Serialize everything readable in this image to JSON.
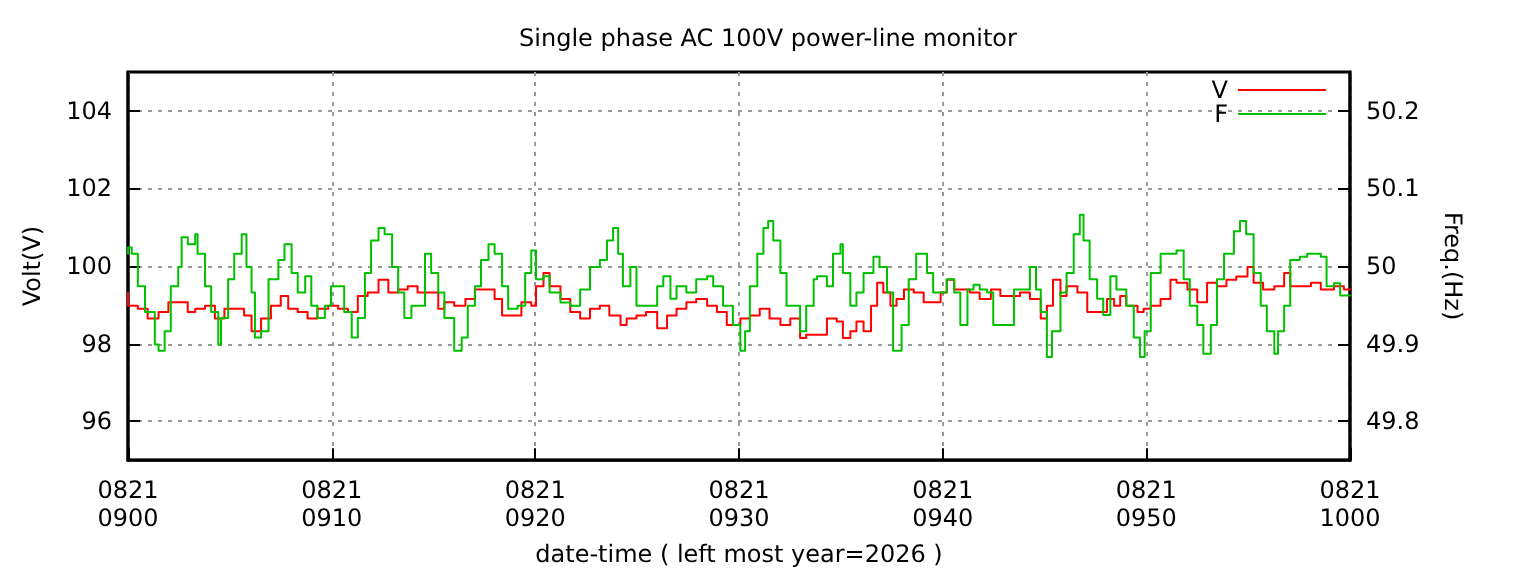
{
  "chart_data": {
    "type": "step",
    "title": "Single phase AC 100V power-line monitor",
    "xlabel": "date-time ( left most year=2026 )",
    "ylabel": "Volt(V)",
    "y2label": "Freq.(Hz)",
    "xlim": [
      "2026-08-21T09:00",
      "2026-08-21T10:00"
    ],
    "xticks": [
      {
        "value": "2026-08-21T09:00",
        "label": "0821\n0900"
      },
      {
        "value": "2026-08-21T09:10",
        "label": "0821\n0910"
      },
      {
        "value": "2026-08-21T09:20",
        "label": "0821\n0920"
      },
      {
        "value": "2026-08-21T09:30",
        "label": "0821\n0930"
      },
      {
        "value": "2026-08-21T09:40",
        "label": "0821\n0940"
      },
      {
        "value": "2026-08-21T09:50",
        "label": "0821\n0950"
      },
      {
        "value": "2026-08-21T10:00",
        "label": "0821\n1000"
      }
    ],
    "ylim": [
      95,
      105
    ],
    "yticks": [
      96,
      98,
      100,
      102,
      104
    ],
    "y2lim": [
      49.75,
      50.25
    ],
    "y2ticks": [
      49.8,
      49.9,
      50,
      50.1,
      50.2
    ],
    "grid": true,
    "legend": "top right",
    "line_style": "solid",
    "marker": "none",
    "series": [
      {
        "name": "V",
        "color": "#ff0000",
        "x": [
          "2026-08-21T09:00:00",
          "2026-08-21T09:00:29",
          "2026-08-21T09:00:58",
          "2026-08-21T09:01:30",
          "2026-08-21T09:01:59",
          "2026-08-21T09:02:28",
          "2026-08-21T09:02:56",
          "2026-08-21T09:03:18",
          "2026-08-21T09:03:47",
          "2026-08-21T09:04:16",
          "2026-08-21T09:04:44",
          "2026-08-21T09:05:13",
          "2026-08-21T09:05:42",
          "2026-08-21T09:06:04",
          "2026-08-21T09:06:32",
          "2026-08-21T09:07:01",
          "2026-08-21T09:07:30",
          "2026-08-21T09:07:52",
          "2026-08-21T09:08:20",
          "2026-08-21T09:08:49",
          "2026-08-21T09:09:18",
          "2026-08-21T09:09:50",
          "2026-08-21T09:10:19",
          "2026-08-21T09:10:48",
          "2026-08-21T09:11:17",
          "2026-08-21T09:11:46",
          "2026-08-21T09:12:18",
          "2026-08-21T09:12:47",
          "2026-08-21T09:13:16",
          "2026-08-21T09:13:44",
          "2026-08-21T09:14:13",
          "2026-08-21T09:14:46",
          "2026-08-21T09:15:14",
          "2026-08-21T09:15:32",
          "2026-08-21T09:16:01",
          "2026-08-21T09:16:34",
          "2026-08-21T09:17:02",
          "2026-08-21T09:17:31",
          "2026-08-21T09:18:00",
          "2026-08-21T09:18:22",
          "2026-08-21T09:18:50",
          "2026-08-21T09:19:19",
          "2026-08-21T09:19:48",
          "2026-08-21T09:20:02",
          "2026-08-21T09:20:24",
          "2026-08-21T09:20:42",
          "2026-08-21T09:21:14",
          "2026-08-21T09:21:43",
          "2026-08-21T09:22:12",
          "2026-08-21T09:22:41",
          "2026-08-21T09:23:10",
          "2026-08-21T09:23:38",
          "2026-08-21T09:24:11",
          "2026-08-21T09:24:29",
          "2026-08-21T09:24:58",
          "2026-08-21T09:25:26",
          "2026-08-21T09:25:59",
          "2026-08-21T09:26:28",
          "2026-08-21T09:26:56",
          "2026-08-21T09:27:25",
          "2026-08-21T09:27:54",
          "2026-08-21T09:28:26",
          "2026-08-21T09:28:55",
          "2026-08-21T09:29:24",
          "2026-08-21T09:29:42",
          "2026-08-21T09:30:04",
          "2026-08-21T09:30:32",
          "2026-08-21T09:31:01",
          "2026-08-21T09:31:30",
          "2026-08-21T09:32:02",
          "2026-08-21T09:32:31",
          "2026-08-21T09:33:00",
          "2026-08-21T09:33:18",
          "2026-08-21T09:33:50",
          "2026-08-21T09:34:19",
          "2026-08-21T09:34:48",
          "2026-08-21T09:35:06",
          "2026-08-21T09:35:28",
          "2026-08-21T09:35:46",
          "2026-08-21T09:36:07",
          "2026-08-21T09:36:29",
          "2026-08-21T09:36:47",
          "2026-08-21T09:37:05",
          "2026-08-21T09:37:26",
          "2026-08-21T09:37:44",
          "2026-08-21T09:38:06",
          "2026-08-21T09:38:35",
          "2026-08-21T09:39:04",
          "2026-08-21T09:39:32",
          "2026-08-21T09:39:54",
          "2026-08-21T09:40:12",
          "2026-08-21T09:40:34",
          "2026-08-21T09:40:52",
          "2026-08-21T09:41:20",
          "2026-08-21T09:41:49",
          "2026-08-21T09:42:22",
          "2026-08-21T09:42:50",
          "2026-08-21T09:43:19",
          "2026-08-21T09:43:48",
          "2026-08-21T09:44:17",
          "2026-08-21T09:44:49",
          "2026-08-21T09:45:07",
          "2026-08-21T09:45:25",
          "2026-08-21T09:45:47",
          "2026-08-21T09:46:05",
          "2026-08-21T09:46:37",
          "2026-08-21T09:47:06",
          "2026-08-21T09:47:35",
          "2026-08-21T09:48:04",
          "2026-08-21T09:48:25",
          "2026-08-21T09:48:43",
          "2026-08-21T09:49:01",
          "2026-08-21T09:49:34",
          "2026-08-21T09:49:52",
          "2026-08-21T09:50:13",
          "2026-08-21T09:50:42",
          "2026-08-21T09:51:11",
          "2026-08-21T09:51:29",
          "2026-08-21T09:52:01",
          "2026-08-21T09:52:30",
          "2026-08-21T09:52:59",
          "2026-08-21T09:53:28",
          "2026-08-21T09:53:56",
          "2026-08-21T09:54:25",
          "2026-08-21T09:54:58",
          "2026-08-21T09:55:16",
          "2026-08-21T09:55:44",
          "2026-08-21T09:56:17",
          "2026-08-21T09:56:46",
          "2026-08-21T09:57:04",
          "2026-08-21T09:57:32",
          "2026-08-21T09:58:05",
          "2026-08-21T09:58:34",
          "2026-08-21T09:59:13",
          "2026-08-21T09:59:42",
          "2026-08-21T10:00:00"
        ],
        "values": [
          99.32,
          98.98,
          98.9,
          98.65,
          98.82,
          99.07,
          99.07,
          98.82,
          98.9,
          98.98,
          98.65,
          98.9,
          98.9,
          98.73,
          98.32,
          98.65,
          98.98,
          99.23,
          98.9,
          98.82,
          98.65,
          98.9,
          98.98,
          98.9,
          98.82,
          99.23,
          99.32,
          99.65,
          99.32,
          99.4,
          99.48,
          99.32,
          99.32,
          98.9,
          99.07,
          98.98,
          99.15,
          99.4,
          99.4,
          99.15,
          98.73,
          98.73,
          99.07,
          98.98,
          99.48,
          99.82,
          99.48,
          99.15,
          98.82,
          98.65,
          98.9,
          98.98,
          98.73,
          98.48,
          98.65,
          98.73,
          98.82,
          98.4,
          98.73,
          98.9,
          99.07,
          99.15,
          98.98,
          98.82,
          98.48,
          98.48,
          98.65,
          98.73,
          98.9,
          98.65,
          98.48,
          98.65,
          98.15,
          98.23,
          98.23,
          98.65,
          98.57,
          98.15,
          98.32,
          98.57,
          98.32,
          98.98,
          99.57,
          99.32,
          98.98,
          99.15,
          99.4,
          99.32,
          99.07,
          99.07,
          99.32,
          99.65,
          99.4,
          99.4,
          99.32,
          99.15,
          99.4,
          99.23,
          99.23,
          99.32,
          99.15,
          98.65,
          98.98,
          99.65,
          99.23,
          99.48,
          99.32,
          98.82,
          98.82,
          99.15,
          98.98,
          99.23,
          98.98,
          98.82,
          98.9,
          98.98,
          99.15,
          99.65,
          99.57,
          99.4,
          99.07,
          99.57,
          99.48,
          99.65,
          99.73,
          99.98,
          99.57,
          99.4,
          99.48,
          99.82,
          99.48,
          99.48,
          99.57,
          99.4,
          99.48,
          99.4
        ]
      },
      {
        "name": "F",
        "color": "#00c000",
        "axis": "y2",
        "x": [
          "2026-08-21T09:00:00",
          "2026-08-21T09:00:11",
          "2026-08-21T09:00:29",
          "2026-08-21T09:00:50",
          "2026-08-21T09:01:19",
          "2026-08-21T09:01:30",
          "2026-08-21T09:01:48",
          "2026-08-21T09:02:06",
          "2026-08-21T09:02:28",
          "2026-08-21T09:02:38",
          "2026-08-21T09:02:56",
          "2026-08-21T09:03:18",
          "2026-08-21T09:03:25",
          "2026-08-21T09:03:47",
          "2026-08-21T09:04:05",
          "2026-08-21T09:04:26",
          "2026-08-21T09:04:34",
          "2026-08-21T09:04:55",
          "2026-08-21T09:05:13",
          "2026-08-21T09:05:35",
          "2026-08-21T09:05:49",
          "2026-08-21T09:06:04",
          "2026-08-21T09:06:14",
          "2026-08-21T09:06:32",
          "2026-08-21T09:06:54",
          "2026-08-21T09:07:23",
          "2026-08-21T09:07:41",
          "2026-08-21T09:08:02",
          "2026-08-21T09:08:20",
          "2026-08-21T09:08:42",
          "2026-08-21T09:09:00",
          "2026-08-21T09:09:18",
          "2026-08-21T09:09:40",
          "2026-08-21T09:09:58",
          "2026-08-21T09:10:19",
          "2026-08-21T09:10:37",
          "2026-08-21T09:10:59",
          "2026-08-21T09:11:17",
          "2026-08-21T09:11:38",
          "2026-08-21T09:11:56",
          "2026-08-21T09:12:18",
          "2026-08-21T09:12:36",
          "2026-08-21T09:12:58",
          "2026-08-21T09:13:16",
          "2026-08-21T09:13:34",
          "2026-08-21T09:13:55",
          "2026-08-21T09:14:13",
          "2026-08-21T09:14:35",
          "2026-08-21T09:14:53",
          "2026-08-21T09:15:14",
          "2026-08-21T09:15:32",
          "2026-08-21T09:16:01",
          "2026-08-21T09:16:23",
          "2026-08-21T09:16:41",
          "2026-08-21T09:17:02",
          "2026-08-21T09:17:20",
          "2026-08-21T09:17:42",
          "2026-08-21T09:18:00",
          "2026-08-21T09:18:22",
          "2026-08-21T09:18:40",
          "2026-08-21T09:19:08",
          "2026-08-21T09:19:30",
          "2026-08-21T09:19:48",
          "2026-08-21T09:20:02",
          "2026-08-21T09:20:24",
          "2026-08-21T09:20:42",
          "2026-08-21T09:21:14",
          "2026-08-21T09:21:43",
          "2026-08-21T09:22:12",
          "2026-08-21T09:22:41",
          "2026-08-21T09:23:10",
          "2026-08-21T09:23:31",
          "2026-08-21T09:23:49",
          "2026-08-21T09:24:04",
          "2026-08-21T09:24:18",
          "2026-08-21T09:24:40",
          "2026-08-21T09:24:58",
          "2026-08-21T09:25:26",
          "2026-08-21T09:25:59",
          "2026-08-21T09:26:17",
          "2026-08-21T09:26:38",
          "2026-08-21T09:26:56",
          "2026-08-21T09:27:25",
          "2026-08-21T09:27:54",
          "2026-08-21T09:28:26",
          "2026-08-21T09:28:44",
          "2026-08-21T09:29:13",
          "2026-08-21T09:29:42",
          "2026-08-21T09:30:04",
          "2026-08-21T09:30:18",
          "2026-08-21T09:30:32",
          "2026-08-21T09:30:54",
          "2026-08-21T09:31:12",
          "2026-08-21T09:31:26",
          "2026-08-21T09:31:41",
          "2026-08-21T09:32:02",
          "2026-08-21T09:32:20",
          "2026-08-21T09:32:42",
          "2026-08-21T09:33:00",
          "2026-08-21T09:33:18",
          "2026-08-21T09:33:40",
          "2026-08-21T09:33:50",
          "2026-08-21T09:34:19",
          "2026-08-21T09:34:37",
          "2026-08-21T09:34:59",
          "2026-08-21T09:35:06",
          "2026-08-21T09:35:28",
          "2026-08-21T09:35:46",
          "2026-08-21T09:36:07",
          "2026-08-21T09:36:36",
          "2026-08-21T09:36:54",
          "2026-08-21T09:37:16",
          "2026-08-21T09:37:34",
          "2026-08-21T09:37:59",
          "2026-08-21T09:38:20",
          "2026-08-21T09:38:42",
          "2026-08-21T09:39:14",
          "2026-08-21T09:39:32",
          "2026-08-21T09:39:54",
          "2026-08-21T09:40:12",
          "2026-08-21T09:40:34",
          "2026-08-21T09:40:52",
          "2026-08-21T09:41:13",
          "2026-08-21T09:41:31",
          "2026-08-21T09:41:49",
          "2026-08-21T09:42:11",
          "2026-08-21T09:42:29",
          "2026-08-21T09:43:01",
          "2026-08-21T09:43:30",
          "2026-08-21T09:43:48",
          "2026-08-21T09:44:17",
          "2026-08-21T09:44:35",
          "2026-08-21T09:44:49",
          "2026-08-21T09:45:07",
          "2026-08-21T09:45:22",
          "2026-08-21T09:45:47",
          "2026-08-21T09:46:05",
          "2026-08-21T09:46:26",
          "2026-08-21T09:46:44",
          "2026-08-21T09:46:55",
          "2026-08-21T09:47:13",
          "2026-08-21T09:47:35",
          "2026-08-21T09:47:53",
          "2026-08-21T09:48:14",
          "2026-08-21T09:48:32",
          "2026-08-21T09:49:01",
          "2026-08-21T09:49:23",
          "2026-08-21T09:49:41",
          "2026-08-21T09:49:55",
          "2026-08-21T09:50:13",
          "2026-08-21T09:50:42",
          "2026-08-21T09:51:00",
          "2026-08-21T09:51:29",
          "2026-08-21T09:51:50",
          "2026-08-21T09:52:08",
          "2026-08-21T09:52:30",
          "2026-08-21T09:52:48",
          "2026-08-21T09:53:10",
          "2026-08-21T09:53:28",
          "2026-08-21T09:53:49",
          "2026-08-21T09:54:18",
          "2026-08-21T09:54:36",
          "2026-08-21T09:54:54",
          "2026-08-21T09:55:16",
          "2026-08-21T09:55:37",
          "2026-08-21T09:55:55",
          "2026-08-21T09:56:17",
          "2026-08-21T09:56:28",
          "2026-08-21T09:56:46",
          "2026-08-21T09:57:04",
          "2026-08-21T09:57:32",
          "2026-08-21T09:57:54",
          "2026-08-21T09:58:34",
          "2026-08-21T09:58:51",
          "2026-08-21T09:59:13",
          "2026-08-21T09:59:31",
          "2026-08-21T10:00:00"
        ],
        "values": [
          50.016,
          50.024,
          50.016,
          49.974,
          49.941,
          49.899,
          49.891,
          49.916,
          49.974,
          49.999,
          50.037,
          50.028,
          50.041,
          50.016,
          49.974,
          49.941,
          49.899,
          49.933,
          49.983,
          50.016,
          50.041,
          49.999,
          49.966,
          49.908,
          49.916,
          49.983,
          50.008,
          50.028,
          49.991,
          49.966,
          49.987,
          49.949,
          49.933,
          49.949,
          49.974,
          49.974,
          49.941,
          49.908,
          49.933,
          49.991,
          50.033,
          50.049,
          50.041,
          49.999,
          49.966,
          49.933,
          49.949,
          49.949,
          50.016,
          49.991,
          49.966,
          49.933,
          49.891,
          49.908,
          49.949,
          49.974,
          50.008,
          50.028,
          50.016,
          49.974,
          49.945,
          49.949,
          49.991,
          50.02,
          49.983,
          49.987,
          49.966,
          49.953,
          49.949,
          49.97,
          49.999,
          50.008,
          50.033,
          50.049,
          50.016,
          49.974,
          49.999,
          49.949,
          49.949,
          49.974,
          49.987,
          49.958,
          49.974,
          49.966,
          49.983,
          49.987,
          49.974,
          49.949,
          49.924,
          49.891,
          49.916,
          49.974,
          50.016,
          50.049,
          50.058,
          50.033,
          49.991,
          49.949,
          49.949,
          49.916,
          49.949,
          49.983,
          49.987,
          49.974,
          50.016,
          50.028,
          49.991,
          49.949,
          49.966,
          49.991,
          50.012,
          49.999,
          49.966,
          49.891,
          49.924,
          49.983,
          50.016,
          49.991,
          49.966,
          49.966,
          49.983,
          49.966,
          49.924,
          49.97,
          49.976,
          49.97,
          49.966,
          49.924,
          49.924,
          49.97,
          49.97,
          49.999,
          49.97,
          49.941,
          49.883,
          49.916,
          49.966,
          49.991,
          50.041,
          50.066,
          50.033,
          49.983,
          49.958,
          49.937,
          49.987,
          49.97,
          49.949,
          49.908,
          49.883,
          49.916,
          49.991,
          50.016,
          50.016,
          50.02,
          49.983,
          49.949,
          49.924,
          49.887,
          49.924,
          49.983,
          50.016,
          50.045,
          50.058,
          50.041,
          49.991,
          49.949,
          49.916,
          49.887,
          49.916,
          49.949,
          50.008,
          50.012,
          50.016,
          50.012,
          49.974,
          49.978,
          49.962
        ]
      }
    ]
  }
}
